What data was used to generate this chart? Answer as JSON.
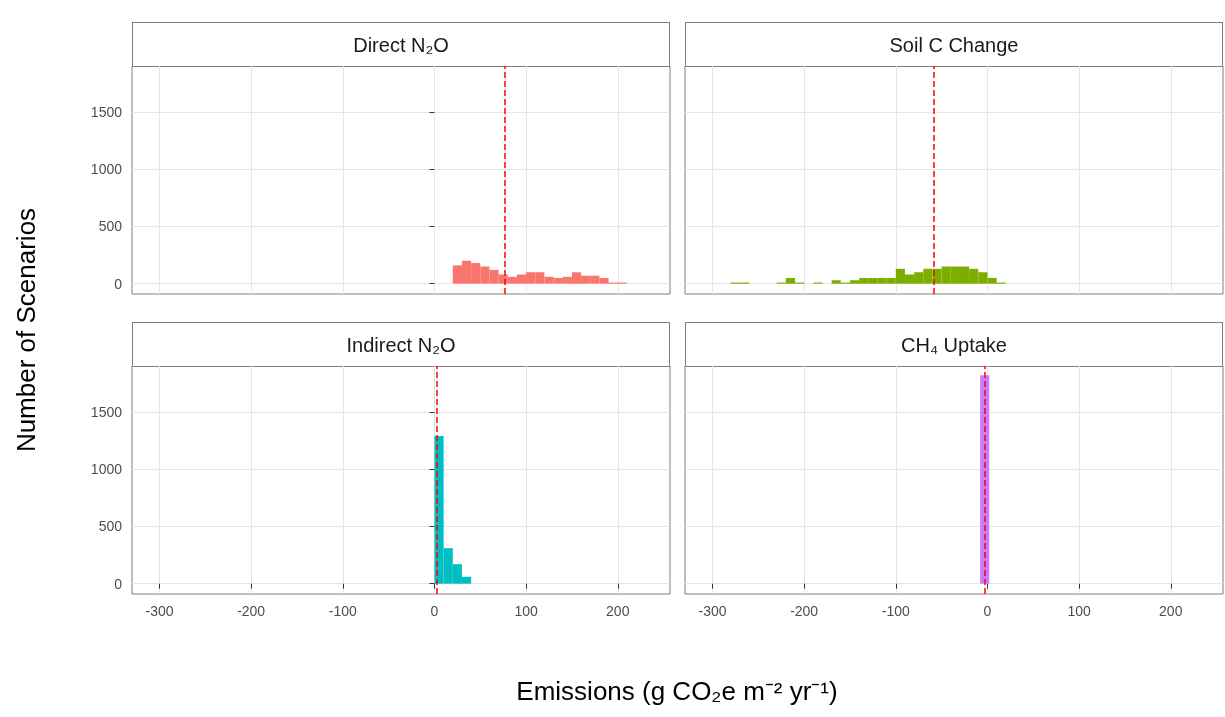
{
  "chart_data": [
    {
      "type": "histogram",
      "title": "Direct N₂O",
      "ylabel": "Number of Scenarios",
      "color": "#f8766d",
      "bins": [
        20,
        30,
        40,
        50,
        60,
        70,
        80,
        90,
        100,
        110,
        120,
        130,
        140,
        150,
        160,
        170,
        180,
        190,
        200,
        210
      ],
      "values": [
        160,
        200,
        180,
        150,
        120,
        80,
        60,
        80,
        100,
        100,
        60,
        50,
        60,
        100,
        70,
        70,
        50,
        10,
        10
      ],
      "xlim": [
        -330,
        257
      ],
      "xticks": [
        -300,
        -200,
        -100,
        0,
        100,
        200
      ],
      "ylim": [
        -90,
        1900
      ],
      "yticks": [
        0,
        500,
        1000,
        1500
      ],
      "grid": true,
      "tick_labels": "y",
      "ref_lines": [
        {
          "axis": "x",
          "value": 77,
          "color": "#ff0000",
          "line_style": "dashed"
        }
      ]
    },
    {
      "type": "histogram",
      "title": "Soil C Change",
      "color": "#7cae00",
      "bins": [
        -280,
        -270,
        -260,
        -250,
        -240,
        -230,
        -220,
        -210,
        -200,
        -190,
        -180,
        -170,
        -160,
        -150,
        -140,
        -130,
        -120,
        -110,
        -100,
        -90,
        -80,
        -70,
        -60,
        -50,
        -40,
        -30,
        -20,
        -10,
        0,
        10,
        20
      ],
      "values": [
        10,
        10,
        0,
        0,
        0,
        10,
        50,
        10,
        0,
        10,
        0,
        30,
        10,
        30,
        50,
        50,
        50,
        50,
        130,
        80,
        100,
        130,
        130,
        150,
        150,
        150,
        130,
        100,
        50,
        10
      ],
      "xlim": [
        -330,
        257
      ],
      "xticks": [
        -300,
        -200,
        -100,
        0,
        100,
        200
      ],
      "ylim": [
        -90,
        1900
      ],
      "yticks": [
        0,
        500,
        1000,
        1500
      ],
      "grid": true,
      "tick_labels": false,
      "ref_lines": [
        {
          "axis": "x",
          "value": -59,
          "color": "#ff0000",
          "line_style": "dashed"
        }
      ]
    },
    {
      "type": "histogram",
      "title": "Indirect N₂O",
      "xlabel": "Emissions (g CO₂e m⁻² yr⁻¹)",
      "color": "#00bfc4",
      "bins": [
        0,
        10,
        20,
        30,
        40
      ],
      "values": [
        1290,
        310,
        170,
        60
      ],
      "xlim": [
        -330,
        257
      ],
      "xticks": [
        -300,
        -200,
        -100,
        0,
        100,
        200
      ],
      "ylim": [
        -90,
        1900
      ],
      "yticks": [
        0,
        500,
        1000,
        1500
      ],
      "grid": true,
      "ref_lines": [
        {
          "axis": "x",
          "value": 3,
          "color": "#ff0000",
          "line_style": "dashed"
        }
      ]
    },
    {
      "type": "histogram",
      "title": "CH₄ Uptake",
      "color": "#c77cff",
      "bins": [
        -8,
        2
      ],
      "values": [
        1820
      ],
      "xlim": [
        -330,
        257
      ],
      "xticks": [
        -300,
        -200,
        -100,
        0,
        100,
        200
      ],
      "ylim": [
        -90,
        1900
      ],
      "yticks": [
        0,
        500,
        1000,
        1500
      ],
      "grid": true,
      "tick_labels": "x",
      "ref_lines": [
        {
          "axis": "x",
          "value": -2.5,
          "color": "#ff0000",
          "line_style": "dashed"
        }
      ]
    }
  ]
}
